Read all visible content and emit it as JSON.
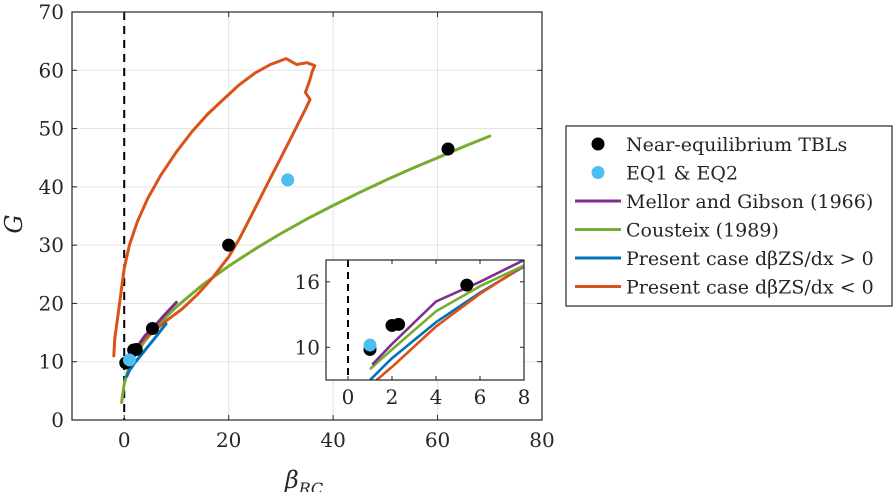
{
  "chart_data": [
    {
      "type": "line",
      "id": "main",
      "xlabel": "β_RC",
      "ylabel": "G",
      "xlim": [
        -10,
        80
      ],
      "ylim": [
        0,
        70
      ],
      "xticks": [
        0,
        20,
        40,
        60,
        80
      ],
      "yticks": [
        0,
        10,
        20,
        30,
        40,
        50,
        60,
        70
      ],
      "grid": true,
      "reference_line": {
        "x": 0,
        "style": "dashed"
      },
      "series": [
        {
          "name": "Near-equilibrium TBLs",
          "kind": "scatter",
          "color": "#000000",
          "points": [
            [
              0.3,
              9.8
            ],
            [
              1.8,
              12.0
            ],
            [
              2.3,
              12.1
            ],
            [
              5.4,
              15.7
            ],
            [
              20.0,
              30.0
            ],
            [
              62.0,
              46.5
            ]
          ]
        },
        {
          "name": "EQ1 & EQ2",
          "kind": "scatter",
          "color": "#4DBEEE",
          "points": [
            [
              1.0,
              10.3
            ],
            [
              31.3,
              41.2
            ]
          ]
        },
        {
          "name": "Mellor and Gibson (1966)",
          "kind": "line",
          "color": "#7E2F8E",
          "points": [
            [
              0.8,
              10.0
            ],
            [
              2,
              12.0
            ],
            [
              4,
              14.5
            ],
            [
              6,
              16.3
            ],
            [
              8,
              18.3
            ],
            [
              10,
              20.2
            ]
          ]
        },
        {
          "name": "Cousteix (1989)",
          "kind": "line",
          "color": "#77AC30",
          "points": [
            [
              -0.5,
              3
            ],
            [
              0,
              6.2
            ],
            [
              1,
              9.3
            ],
            [
              2,
              11.0
            ],
            [
              4,
              13.6
            ],
            [
              6,
              15.8
            ],
            [
              8,
              17.7
            ],
            [
              10,
              19.4
            ],
            [
              15,
              23.2
            ],
            [
              20,
              26.4
            ],
            [
              25,
              29.3
            ],
            [
              30,
              32.0
            ],
            [
              35,
              34.5
            ],
            [
              40,
              36.8
            ],
            [
              45,
              39.0
            ],
            [
              50,
              41.1
            ],
            [
              55,
              43.1
            ],
            [
              60,
              45.0
            ],
            [
              65,
              46.9
            ],
            [
              70,
              48.7
            ]
          ]
        },
        {
          "name": "Present case dβ_ZS/dx > 0",
          "kind": "line",
          "color": "#0072BD",
          "points": [
            [
              0.5,
              7.5
            ],
            [
              1,
              8.5
            ],
            [
              2,
              9.8
            ],
            [
              4,
              12.0
            ],
            [
              6,
              14.2
            ],
            [
              8,
              16.5
            ]
          ]
        },
        {
          "name": "Present case dβ_ZS/dx < 0",
          "kind": "line",
          "color": "#D95319",
          "points": [
            [
              -2,
              11
            ],
            [
              -1.8,
              14
            ],
            [
              -1.2,
              18
            ],
            [
              -0.6,
              22
            ],
            [
              0,
              26
            ],
            [
              1,
              30
            ],
            [
              2.5,
              34
            ],
            [
              4.5,
              38
            ],
            [
              7,
              42
            ],
            [
              10,
              46
            ],
            [
              13,
              49.5
            ],
            [
              16,
              52.5
            ],
            [
              19,
              55
            ],
            [
              22,
              57.5
            ],
            [
              25,
              59.5
            ],
            [
              28,
              61
            ],
            [
              31,
              62
            ],
            [
              33,
              61
            ],
            [
              35,
              61.3
            ],
            [
              36.5,
              60.8
            ],
            [
              36,
              59.8
            ],
            [
              35.5,
              58.2
            ],
            [
              34.7,
              56.2
            ],
            [
              35.6,
              55
            ],
            [
              34.7,
              53.3
            ],
            [
              33.4,
              51
            ],
            [
              32,
              48.5
            ],
            [
              30,
              45
            ],
            [
              28,
              41.5
            ],
            [
              26,
              38
            ],
            [
              24,
              34.5
            ],
            [
              22,
              31
            ],
            [
              20,
              28
            ],
            [
              17,
              24.5
            ],
            [
              14,
              21.5
            ],
            [
              11,
              19
            ],
            [
              8,
              17
            ],
            [
              6,
              15.5
            ],
            [
              4,
              14
            ],
            [
              2.5,
              12.7
            ]
          ]
        }
      ]
    },
    {
      "type": "line",
      "id": "inset",
      "xlim": [
        -1,
        8
      ],
      "ylim": [
        7,
        18
      ],
      "xticks": [
        0,
        2,
        4,
        6,
        8
      ],
      "yticks": [
        10,
        16
      ],
      "grid": false,
      "reference_line": {
        "x": 0,
        "style": "dashed"
      },
      "series": [
        {
          "name": "Near-equilibrium TBLs",
          "kind": "scatter",
          "color": "#000000",
          "points": [
            [
              1.0,
              9.8
            ],
            [
              2.0,
              12.0
            ],
            [
              2.3,
              12.1
            ],
            [
              5.4,
              15.7
            ]
          ]
        },
        {
          "name": "EQ1 & EQ2",
          "kind": "scatter",
          "color": "#4DBEEE",
          "points": [
            [
              1.0,
              10.2
            ]
          ]
        },
        {
          "name": "Mellor and Gibson (1966)",
          "kind": "line",
          "color": "#7E2F8E",
          "points": [
            [
              1.1,
              8.4
            ],
            [
              2,
              10.3
            ],
            [
              4,
              14.2
            ],
            [
              6,
              16.0
            ],
            [
              8,
              18.0
            ]
          ]
        },
        {
          "name": "Cousteix (1989)",
          "kind": "line",
          "color": "#77AC30",
          "points": [
            [
              1.0,
              8.0
            ],
            [
              2,
              9.8
            ],
            [
              4,
              13.3
            ],
            [
              6,
              15.6
            ],
            [
              8,
              17.5
            ]
          ]
        },
        {
          "name": "Present case dβ_ZS/dx > 0",
          "kind": "line",
          "color": "#0072BD",
          "points": [
            [
              1.0,
              7.0
            ],
            [
              2,
              9.0
            ],
            [
              4,
              12.3
            ],
            [
              6,
              15.0
            ],
            [
              8,
              17.4
            ]
          ]
        },
        {
          "name": "Present case dβ_ZS/dx < 0",
          "kind": "line",
          "color": "#D95319",
          "points": [
            [
              1.3,
              7.0
            ],
            [
              2,
              8.2
            ],
            [
              4,
              11.9
            ],
            [
              6,
              14.9
            ],
            [
              8,
              17.5
            ]
          ]
        }
      ]
    }
  ],
  "legend": {
    "placement": "right",
    "entries": [
      {
        "label": "Near-equilibrium TBLs",
        "kind": "marker",
        "color": "#000000"
      },
      {
        "label": "EQ1 & EQ2",
        "kind": "marker",
        "color": "#4DBEEE"
      },
      {
        "label": "Mellor and Gibson (1966)",
        "kind": "line",
        "color": "#7E2F8E"
      },
      {
        "label": "Cousteix (1989)",
        "kind": "line",
        "color": "#77AC30"
      },
      {
        "label": "Present case dβZS/dx > 0",
        "kind": "line",
        "color": "#0072BD"
      },
      {
        "label": "Present case dβZS/dx < 0",
        "kind": "line",
        "color": "#D95319"
      }
    ]
  }
}
